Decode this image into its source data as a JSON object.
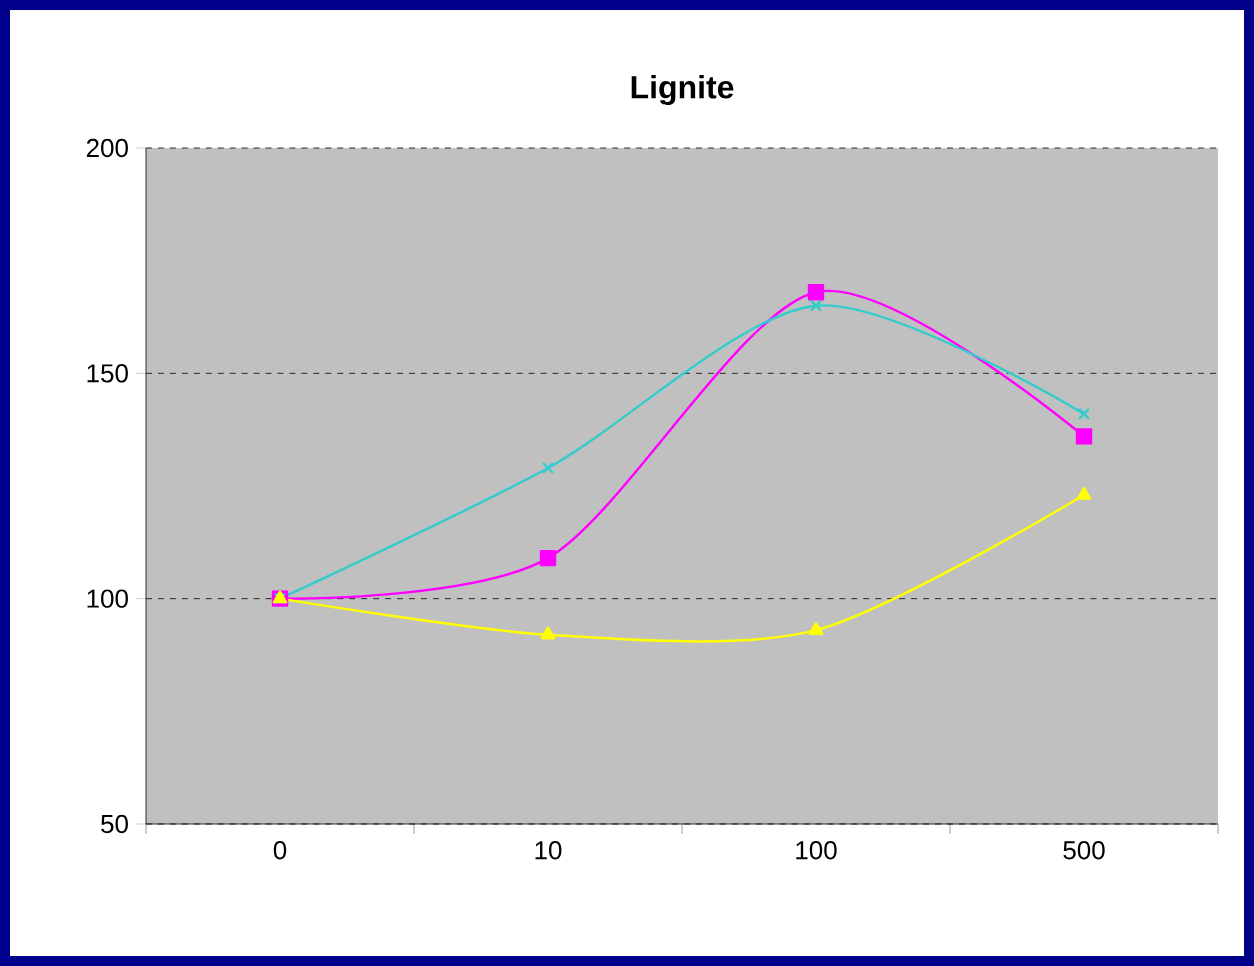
{
  "chart_data": {
    "type": "line",
    "title": "Lignite",
    "categories": [
      "0",
      "10",
      "100",
      "500"
    ],
    "series": [
      {
        "color": "#ff00ff",
        "marker": "square",
        "values": [
          100,
          109,
          168,
          136
        ]
      },
      {
        "color": "#33cccc",
        "marker": "cross",
        "values": [
          100,
          129,
          165,
          141
        ]
      },
      {
        "color": "#ffff00",
        "marker": "triangle",
        "values": [
          100,
          92,
          93,
          123
        ]
      }
    ],
    "ylim": [
      50,
      200
    ],
    "yticks": [
      50,
      100,
      150,
      200
    ],
    "grid": "y"
  }
}
